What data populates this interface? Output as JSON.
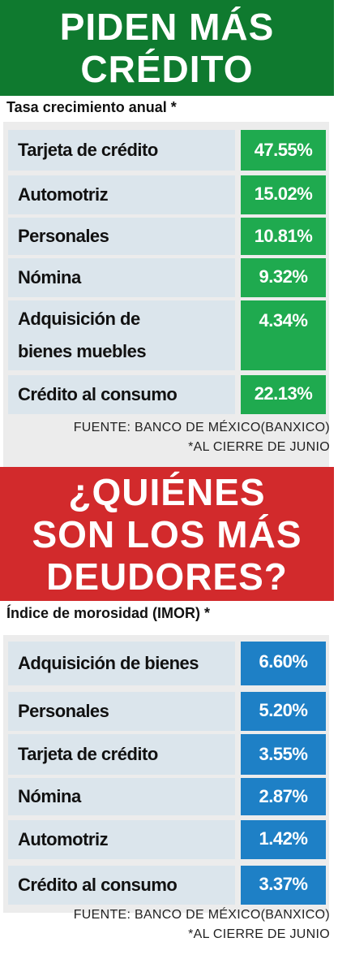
{
  "sections": [
    {
      "title": [
        "PIDEN MÁS",
        "CRÉDITO"
      ],
      "subtitle": "Tasa crecimiento anual *",
      "rows": [
        [
          "Tarjeta de crédito",
          "47.55%"
        ],
        [
          "Automotriz",
          "15.02%"
        ],
        [
          "Personales",
          "10.81%"
        ],
        [
          "Nómina",
          "9.32%"
        ],
        [
          "Adquisición de bienes muebles",
          "4.34%"
        ],
        [
          "Crédito al consumo",
          "22.13%"
        ]
      ],
      "source": "FUENTE: BANCO DE MÉXICO(BANXICO)",
      "note": "*AL CIERRE DE JUNIO"
    },
    {
      "title": [
        "¿QUIÉNES",
        "SON LOS MÁS",
        "DEUDORES?"
      ],
      "subtitle": "Índice de morosidad (IMOR) *",
      "rows": [
        [
          "Adquisición de bienes",
          "6.60%"
        ],
        [
          "Personales",
          "5.20%"
        ],
        [
          "Tarjeta de crédito",
          "3.55%"
        ],
        [
          "Nómina",
          "2.87%"
        ],
        [
          "Automotriz",
          "1.42%"
        ],
        [
          "Crédito al consumo",
          "3.37%"
        ]
      ],
      "source": "FUENTE: BANCO DE MÉXICO(BANXICO)",
      "note": "*AL CIERRE DE JUNIO"
    }
  ]
}
